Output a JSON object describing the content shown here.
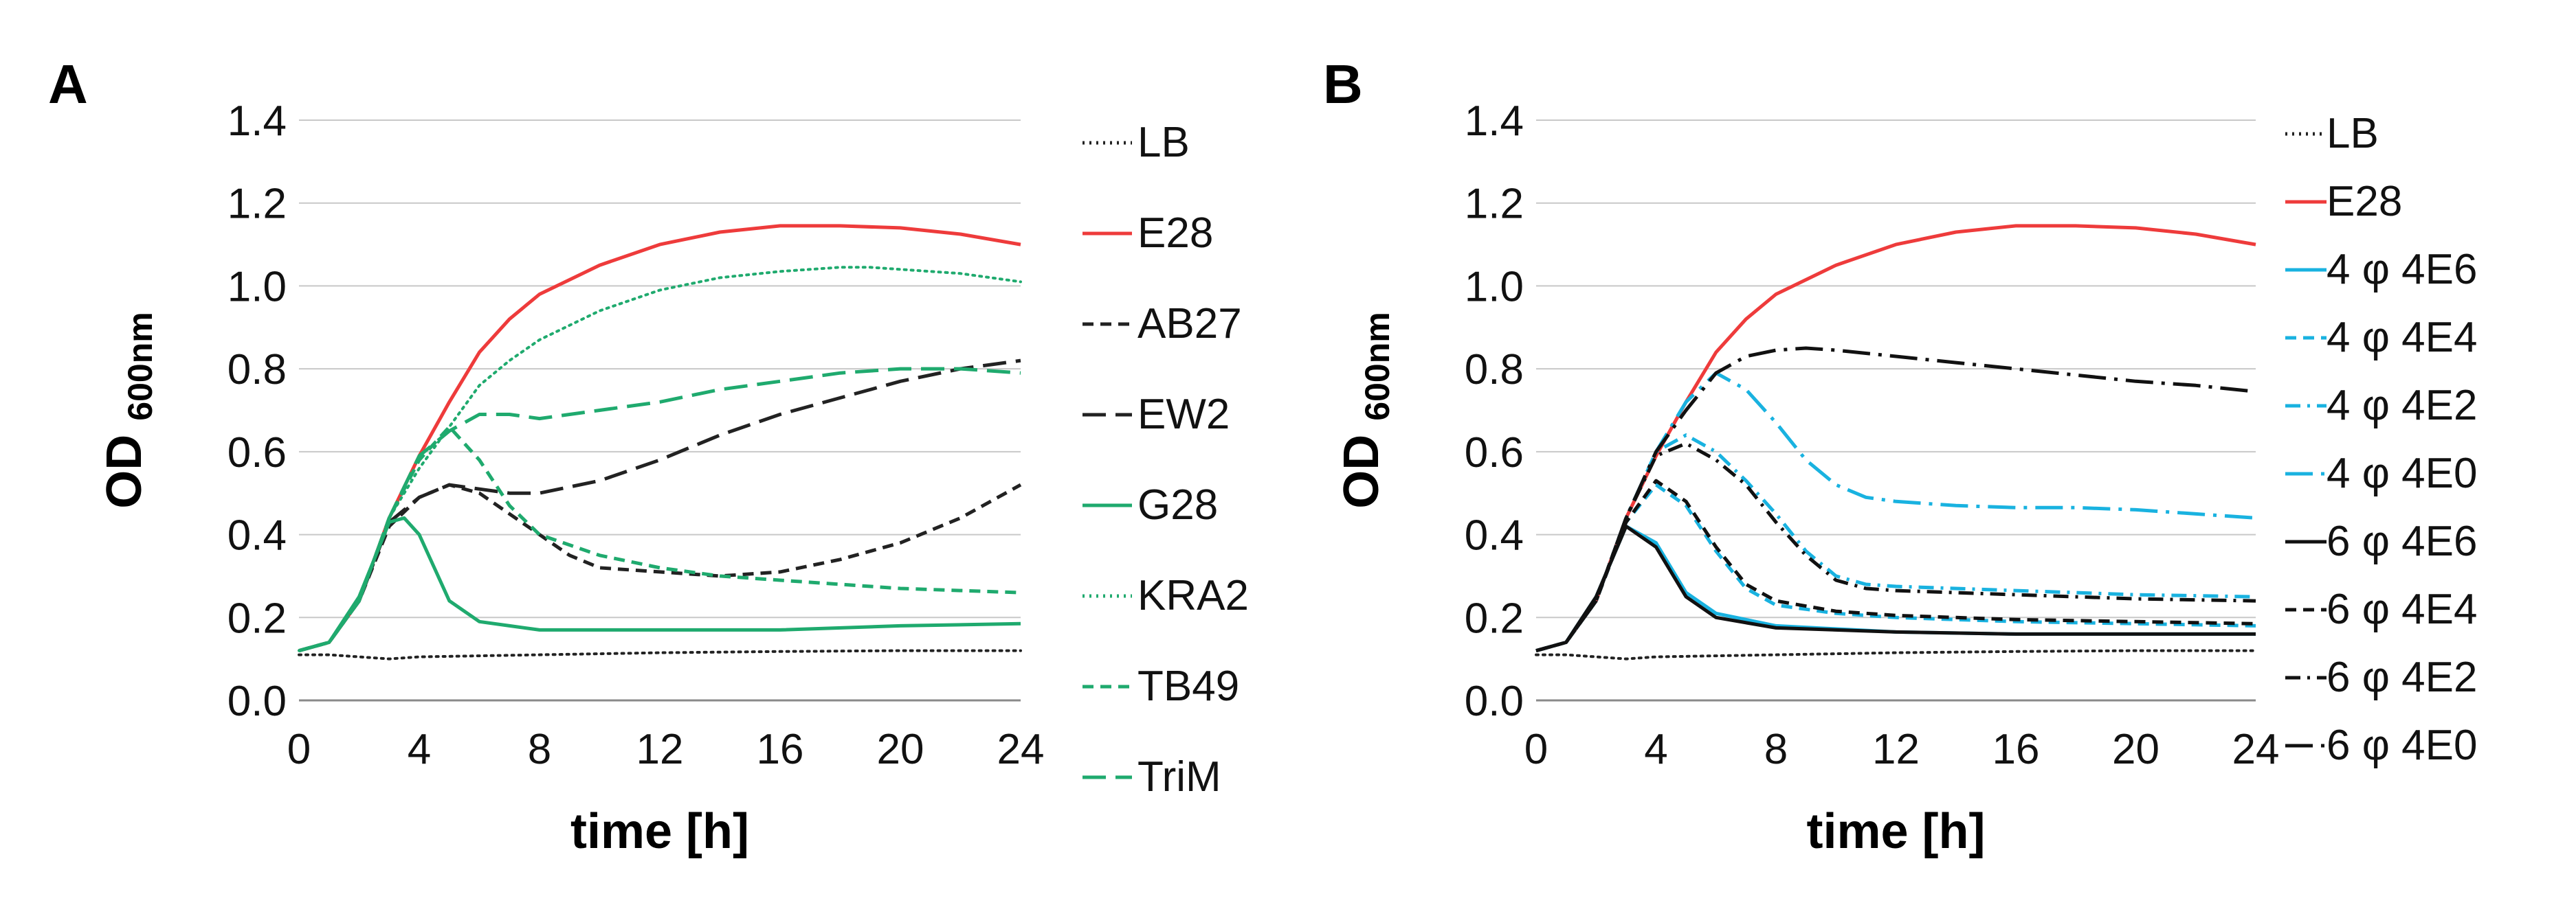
{
  "chart_data": [
    {
      "panel": "A",
      "type": "line",
      "xlabel": "time [h]",
      "ylabel": "OD",
      "ylabel_sub": "600nm",
      "xlim": [
        0,
        24
      ],
      "ylim": [
        0.0,
        1.4
      ],
      "xticks": [
        0,
        4,
        8,
        12,
        16,
        20,
        24
      ],
      "yticks": [
        "0.0",
        "0.2",
        "0.4",
        "0.6",
        "0.8",
        "1.0",
        "1.2",
        "1.4"
      ],
      "grid": "horizontal",
      "legend": "right",
      "series": [
        {
          "name": "LB",
          "color": "#222222",
          "style": "dotted",
          "x": [
            0,
            1,
            2,
            3,
            4,
            8,
            12,
            16,
            20,
            24
          ],
          "y": [
            0.11,
            0.11,
            0.105,
            0.1,
            0.105,
            0.11,
            0.115,
            0.118,
            0.12,
            0.12
          ]
        },
        {
          "name": "E28",
          "color": "#ee3b3b",
          "style": "solid",
          "x": [
            0,
            1,
            2,
            3,
            4,
            5,
            6,
            7,
            8,
            10,
            12,
            14,
            16,
            18,
            20,
            22,
            24
          ],
          "y": [
            0.12,
            0.14,
            0.24,
            0.44,
            0.59,
            0.72,
            0.84,
            0.92,
            0.98,
            1.05,
            1.1,
            1.13,
            1.145,
            1.145,
            1.14,
            1.125,
            1.1
          ]
        },
        {
          "name": "AB27",
          "color": "#222222",
          "style": "dashed",
          "x": [
            0,
            1,
            2,
            3,
            4,
            5,
            6,
            7,
            8,
            9,
            10,
            12,
            14,
            16,
            18,
            20,
            22,
            24
          ],
          "y": [
            0.12,
            0.14,
            0.24,
            0.42,
            0.49,
            0.52,
            0.5,
            0.45,
            0.4,
            0.35,
            0.32,
            0.31,
            0.3,
            0.31,
            0.34,
            0.38,
            0.44,
            0.52
          ]
        },
        {
          "name": "EW2",
          "color": "#222222",
          "style": "longdash",
          "x": [
            0,
            1,
            2,
            3,
            4,
            5,
            6,
            7,
            8,
            10,
            12,
            14,
            16,
            18,
            20,
            22,
            24
          ],
          "y": [
            0.12,
            0.14,
            0.24,
            0.43,
            0.49,
            0.52,
            0.51,
            0.5,
            0.5,
            0.53,
            0.58,
            0.64,
            0.69,
            0.73,
            0.77,
            0.8,
            0.82
          ]
        },
        {
          "name": "G28",
          "color": "#1faa6e",
          "style": "solid",
          "x": [
            0,
            1,
            2,
            3,
            3.5,
            4,
            5,
            6,
            7,
            8,
            12,
            16,
            20,
            24
          ],
          "y": [
            0.12,
            0.14,
            0.25,
            0.43,
            0.44,
            0.4,
            0.24,
            0.19,
            0.18,
            0.17,
            0.17,
            0.17,
            0.18,
            0.185
          ]
        },
        {
          "name": "KRA2",
          "color": "#1faa6e",
          "style": "dotted",
          "x": [
            0,
            1,
            2,
            3,
            4,
            5,
            6,
            7,
            8,
            10,
            12,
            14,
            16,
            18,
            19,
            20,
            22,
            24
          ],
          "y": [
            0.12,
            0.14,
            0.24,
            0.44,
            0.56,
            0.66,
            0.76,
            0.82,
            0.87,
            0.94,
            0.99,
            1.02,
            1.035,
            1.045,
            1.045,
            1.04,
            1.03,
            1.01
          ]
        },
        {
          "name": "TB49",
          "color": "#1faa6e",
          "style": "dashed",
          "x": [
            0,
            1,
            2,
            3,
            4,
            5,
            6,
            7,
            8,
            10,
            12,
            14,
            16,
            18,
            20,
            24
          ],
          "y": [
            0.12,
            0.14,
            0.24,
            0.44,
            0.58,
            0.66,
            0.58,
            0.47,
            0.4,
            0.35,
            0.32,
            0.3,
            0.29,
            0.28,
            0.27,
            0.26
          ]
        },
        {
          "name": "TriM",
          "color": "#1faa6e",
          "style": "longdash",
          "x": [
            0,
            1,
            2,
            3,
            4,
            5,
            6,
            7,
            8,
            10,
            12,
            14,
            16,
            18,
            20,
            21,
            22,
            24
          ],
          "y": [
            0.12,
            0.14,
            0.24,
            0.44,
            0.59,
            0.65,
            0.69,
            0.69,
            0.68,
            0.7,
            0.72,
            0.75,
            0.77,
            0.79,
            0.8,
            0.8,
            0.8,
            0.79
          ]
        }
      ]
    },
    {
      "panel": "B",
      "type": "line",
      "xlabel": "time [h]",
      "ylabel": "OD",
      "ylabel_sub": "600nm",
      "xlim": [
        0,
        24
      ],
      "ylim": [
        0.0,
        1.4
      ],
      "xticks": [
        0,
        4,
        8,
        12,
        16,
        20,
        24
      ],
      "yticks": [
        "0.0",
        "0.2",
        "0.4",
        "0.6",
        "0.8",
        "1.0",
        "1.2",
        "1.4"
      ],
      "grid": "horizontal",
      "legend": "right",
      "series": [
        {
          "name": "LB",
          "color": "#222222",
          "style": "dotted",
          "x": [
            0,
            1,
            2,
            3,
            4,
            8,
            12,
            16,
            20,
            24
          ],
          "y": [
            0.11,
            0.11,
            0.105,
            0.1,
            0.105,
            0.11,
            0.115,
            0.118,
            0.12,
            0.12
          ]
        },
        {
          "name": "E28",
          "color": "#ee3b3b",
          "style": "solid",
          "x": [
            0,
            1,
            2,
            3,
            4,
            5,
            6,
            7,
            8,
            10,
            12,
            14,
            16,
            18,
            20,
            22,
            24
          ],
          "y": [
            0.12,
            0.14,
            0.24,
            0.44,
            0.59,
            0.72,
            0.84,
            0.92,
            0.98,
            1.05,
            1.1,
            1.13,
            1.145,
            1.145,
            1.14,
            1.125,
            1.1
          ]
        },
        {
          "name": "4 φ 4E6",
          "color": "#19b2e0",
          "style": "solid",
          "x": [
            0,
            1,
            2,
            3,
            4,
            5,
            6,
            8,
            12,
            16,
            20,
            24
          ],
          "y": [
            0.12,
            0.14,
            0.25,
            0.42,
            0.38,
            0.26,
            0.21,
            0.18,
            0.165,
            0.16,
            0.16,
            0.16
          ]
        },
        {
          "name": "4 φ 4E4",
          "color": "#19b2e0",
          "style": "dashed",
          "x": [
            0,
            1,
            2,
            3,
            4,
            5,
            6,
            7,
            8,
            10,
            12,
            16,
            20,
            24
          ],
          "y": [
            0.12,
            0.14,
            0.24,
            0.43,
            0.52,
            0.47,
            0.36,
            0.27,
            0.23,
            0.21,
            0.2,
            0.19,
            0.185,
            0.18
          ]
        },
        {
          "name": "4 φ 4E2",
          "color": "#19b2e0",
          "style": "dashdot",
          "x": [
            0,
            1,
            2,
            3,
            4,
            5,
            6,
            7,
            8,
            9,
            10,
            11,
            12,
            16,
            20,
            24
          ],
          "y": [
            0.12,
            0.14,
            0.24,
            0.44,
            0.6,
            0.64,
            0.6,
            0.53,
            0.45,
            0.36,
            0.3,
            0.28,
            0.275,
            0.265,
            0.255,
            0.25
          ]
        },
        {
          "name": "4 φ 4E0",
          "color": "#19b2e0",
          "style": "longdashdot",
          "x": [
            0,
            1,
            2,
            3,
            4,
            5,
            6,
            7,
            8,
            9,
            10,
            11,
            12,
            14,
            16,
            18,
            20,
            22,
            24
          ],
          "y": [
            0.12,
            0.14,
            0.24,
            0.44,
            0.6,
            0.72,
            0.79,
            0.75,
            0.67,
            0.58,
            0.52,
            0.49,
            0.48,
            0.47,
            0.465,
            0.465,
            0.46,
            0.45,
            0.44
          ]
        },
        {
          "name": "6 φ 4E6",
          "color": "#111111",
          "style": "solid",
          "x": [
            0,
            1,
            2,
            3,
            4,
            5,
            6,
            8,
            12,
            16,
            20,
            24
          ],
          "y": [
            0.12,
            0.14,
            0.25,
            0.42,
            0.37,
            0.25,
            0.2,
            0.175,
            0.165,
            0.16,
            0.16,
            0.16
          ]
        },
        {
          "name": "6 φ 4E4",
          "color": "#111111",
          "style": "dashed",
          "x": [
            0,
            1,
            2,
            3,
            4,
            5,
            6,
            7,
            8,
            10,
            12,
            16,
            20,
            24
          ],
          "y": [
            0.12,
            0.14,
            0.24,
            0.43,
            0.53,
            0.48,
            0.37,
            0.28,
            0.24,
            0.215,
            0.205,
            0.195,
            0.19,
            0.185
          ]
        },
        {
          "name": "6 φ 4E2",
          "color": "#111111",
          "style": "dashdot",
          "x": [
            0,
            1,
            2,
            3,
            4,
            5,
            6,
            7,
            8,
            9,
            10,
            11,
            12,
            16,
            20,
            24
          ],
          "y": [
            0.12,
            0.14,
            0.24,
            0.44,
            0.59,
            0.62,
            0.58,
            0.52,
            0.43,
            0.35,
            0.29,
            0.27,
            0.265,
            0.255,
            0.245,
            0.24
          ]
        },
        {
          "name": "6 φ 4E0",
          "color": "#111111",
          "style": "longdashdot",
          "x": [
            0,
            1,
            2,
            3,
            4,
            5,
            6,
            7,
            8,
            9,
            10,
            12,
            14,
            16,
            18,
            20,
            22,
            24
          ],
          "y": [
            0.12,
            0.14,
            0.24,
            0.44,
            0.6,
            0.7,
            0.79,
            0.83,
            0.845,
            0.85,
            0.845,
            0.83,
            0.815,
            0.8,
            0.785,
            0.77,
            0.76,
            0.745
          ]
        }
      ]
    }
  ]
}
